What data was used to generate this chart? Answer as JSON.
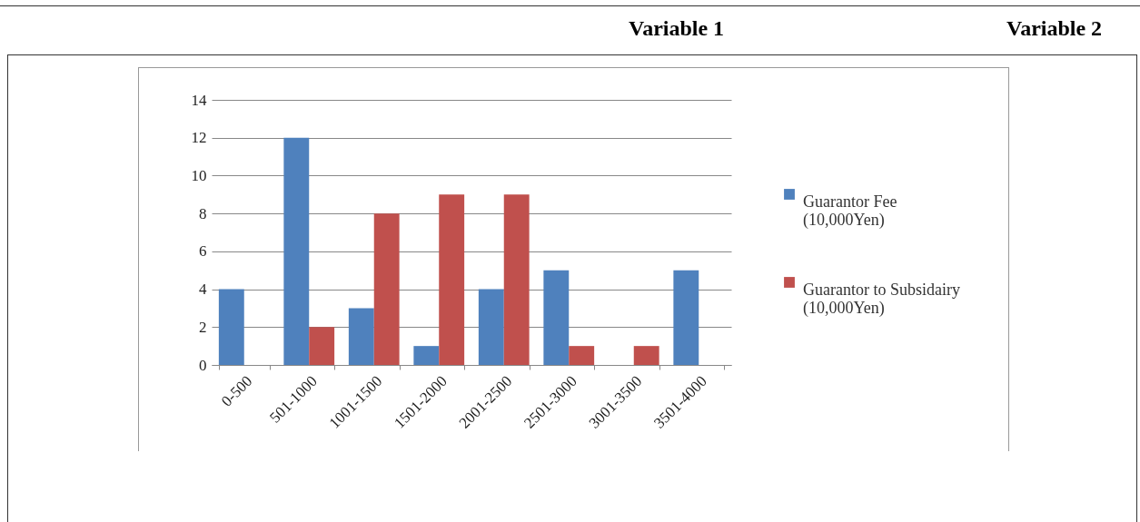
{
  "chart_data": {
    "type": "bar",
    "annotations": [
      "Variable 1",
      "Variable 2"
    ],
    "categories": [
      "0-500",
      "501-1000",
      "1001-1500",
      "1501-2000",
      "2001-2500",
      "2501-3000",
      "3001-3500",
      "3501-4000"
    ],
    "series": [
      {
        "name": "Guarantor Fee (10,000Yen)",
        "color": "#4f81bd",
        "values": [
          4,
          12,
          3,
          1,
          4,
          5,
          0,
          5
        ]
      },
      {
        "name": "Guarantor to Subsidairy (10,000Yen)",
        "color": "#c0504d",
        "values": [
          0,
          2,
          8,
          9,
          9,
          1,
          1,
          0
        ]
      }
    ],
    "ylim": [
      0,
      14
    ],
    "yticks": [
      0,
      2,
      4,
      6,
      8,
      10,
      12,
      14
    ],
    "grid": "y",
    "legend": "right"
  }
}
